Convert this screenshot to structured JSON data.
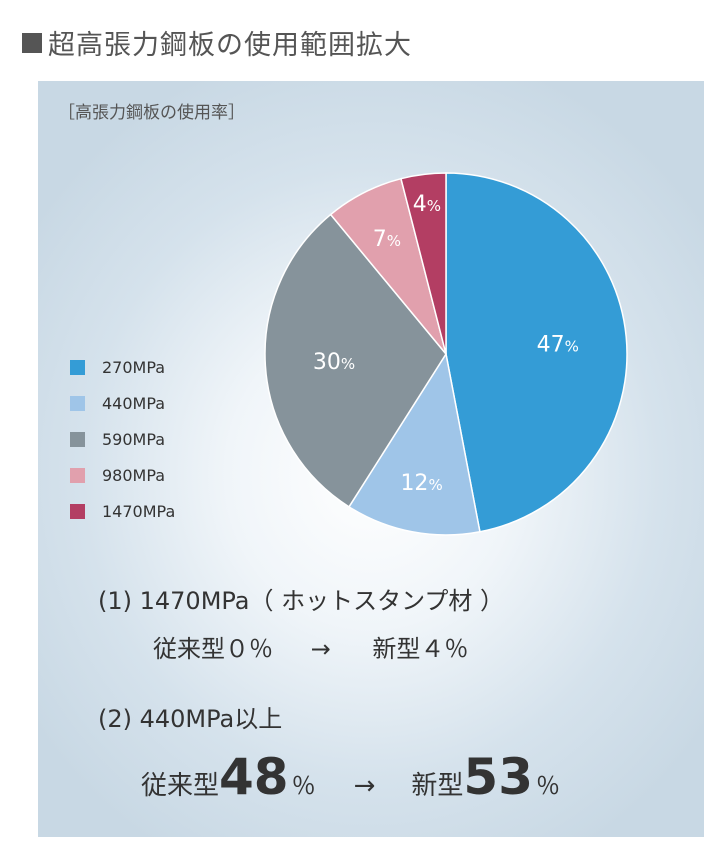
{
  "title": "■超高張力鋼板の使用範囲拡大",
  "title_text": "超高張力鋼板の使用範囲拡大",
  "colors": {
    "s270": "#349cd6",
    "s440": "#9fc5e8",
    "s590": "#86939b",
    "s980": "#e1a0ad",
    "s1470": "#b33e63",
    "title_square": "#555555",
    "panel": "#d5e2ec"
  },
  "chart_data": {
    "type": "pie",
    "title": "［高張力鋼板の使用率］",
    "categories": [
      "270MPa",
      "440MPa",
      "590MPa",
      "980MPa",
      "1470MPa"
    ],
    "values": [
      47,
      12,
      30,
      7,
      4
    ],
    "labels": [
      "47",
      "12",
      "30",
      "7",
      "4"
    ],
    "unit": "%",
    "legend_position": "left",
    "start": "top, clockwise"
  },
  "notes": {
    "line1": "(1)  1470MPa（ ホットスタンプ材 ）",
    "line2_a": "従来型０％",
    "line2_arrow": "→",
    "line2_b": "新型４％",
    "line3": "(2)  440MPa以上",
    "line4_prefix": "従来型",
    "line4_old": "48",
    "line4_pct": "％",
    "line4_arrow": "→",
    "line4_new_prefix": "新型",
    "line4_new": "53",
    "line4_new_pct": "％"
  }
}
